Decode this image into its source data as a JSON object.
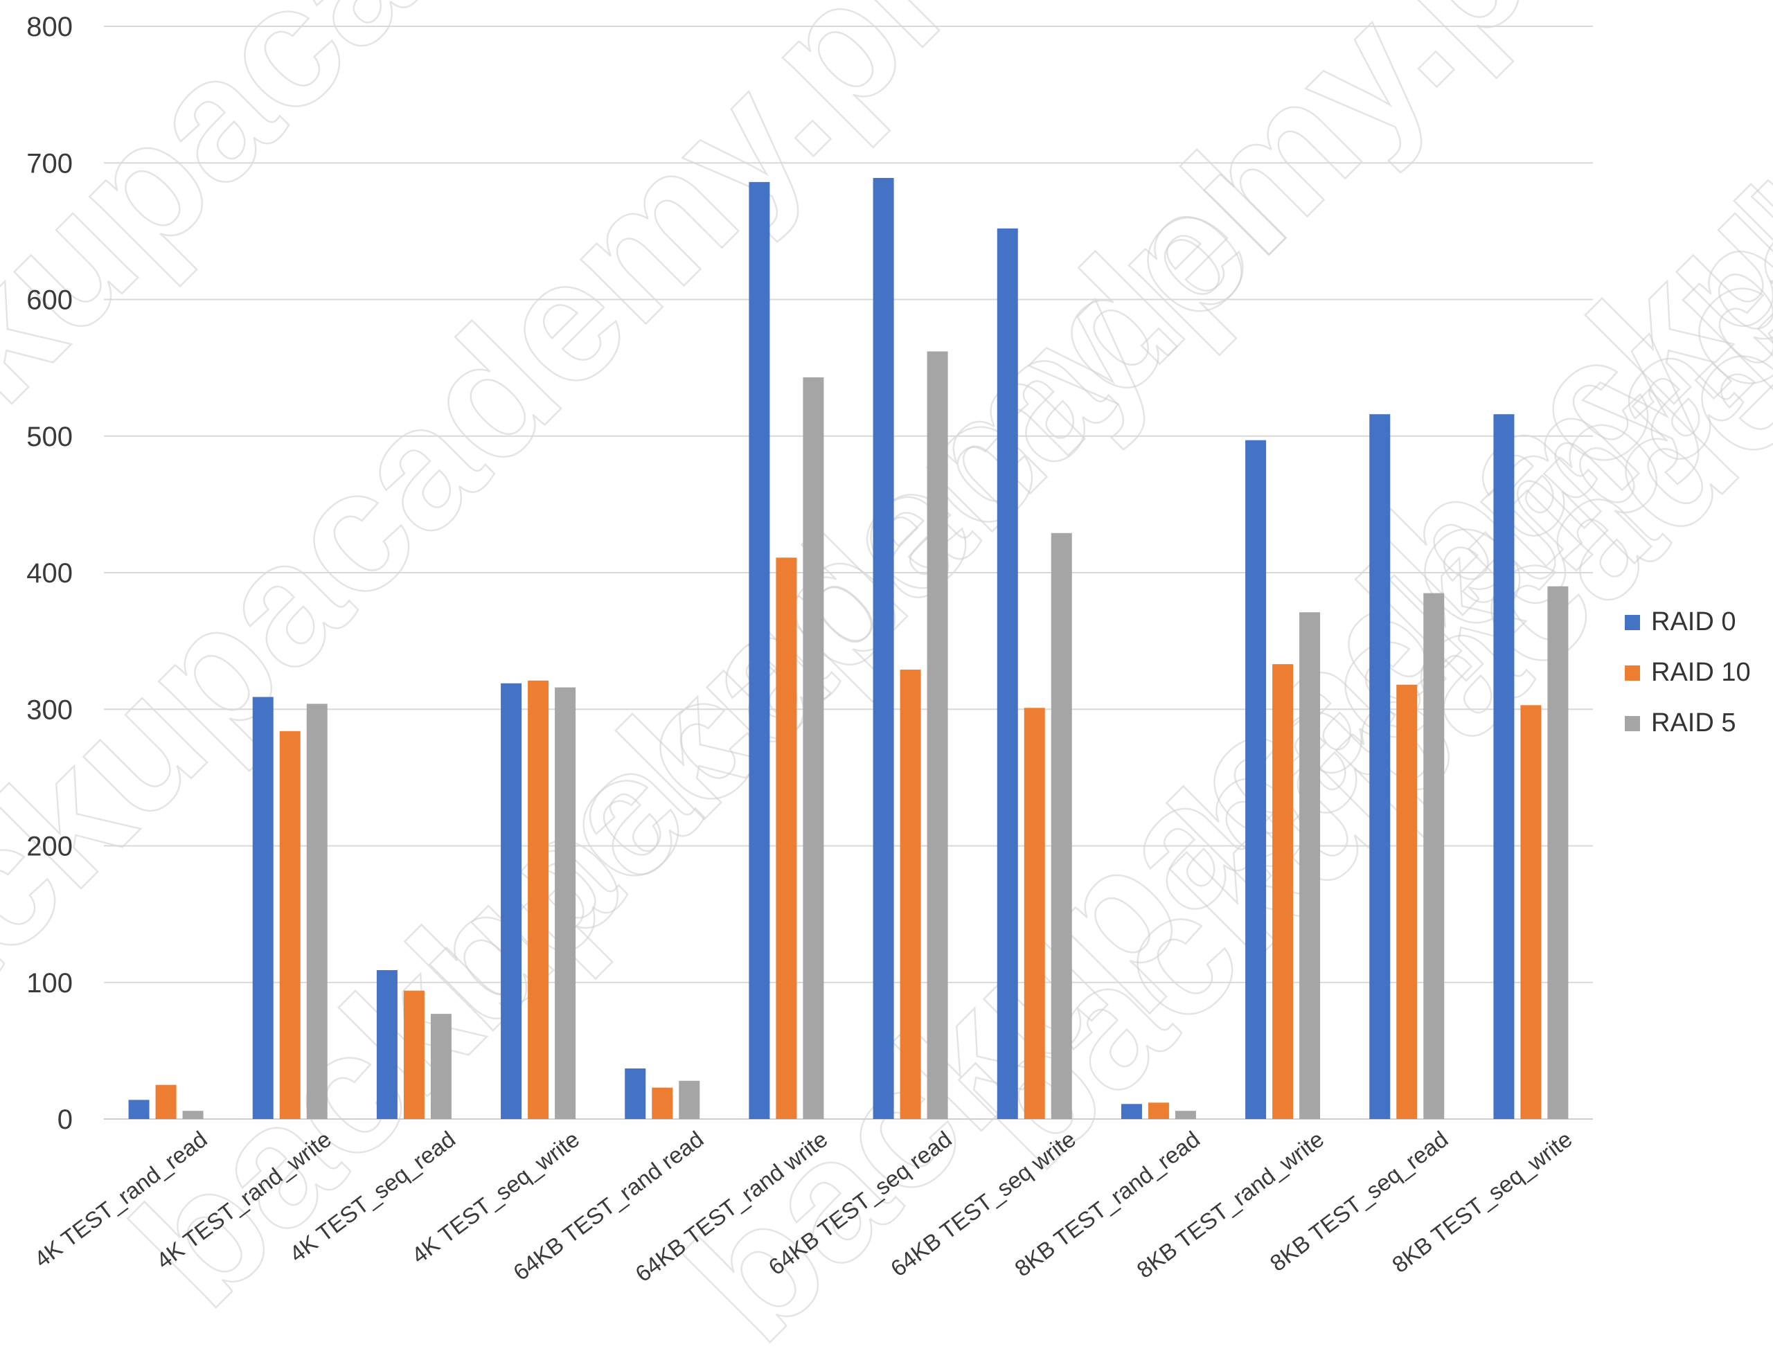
{
  "chart_data": {
    "type": "bar",
    "title": "",
    "xlabel": "",
    "ylabel": "",
    "ylim": [
      0,
      800
    ],
    "yticks": [
      0,
      100,
      200,
      300,
      400,
      500,
      600,
      700,
      800
    ],
    "grid": true,
    "legend_position": "right",
    "categories": [
      "4K TEST_rand_read",
      "4K TEST_rand_write",
      "4K TEST_seq_read",
      "4K TEST_seq_write",
      "64KB TEST_rand read",
      "64KB TEST_rand write",
      "64KB TEST_seq read",
      "64KB TEST_seq write",
      "8KB TEST_rand_read",
      "8KB TEST_rand_write",
      "8KB TEST_seq_read",
      "8KB TEST_seq_write"
    ],
    "series": [
      {
        "name": "RAID 0",
        "color": "#4472C4",
        "values": [
          14,
          309,
          109,
          319,
          37,
          686,
          689,
          652,
          11,
          497,
          516,
          516
        ]
      },
      {
        "name": "RAID 10",
        "color": "#ED7D31",
        "values": [
          25,
          284,
          94,
          321,
          23,
          411,
          329,
          301,
          12,
          333,
          318,
          303
        ]
      },
      {
        "name": "RAID 5",
        "color": "#A5A5A5",
        "values": [
          6,
          304,
          77,
          316,
          28,
          543,
          562,
          429,
          6,
          371,
          385,
          390
        ]
      }
    ]
  },
  "watermark": {
    "text": "backupacademy.pl"
  }
}
